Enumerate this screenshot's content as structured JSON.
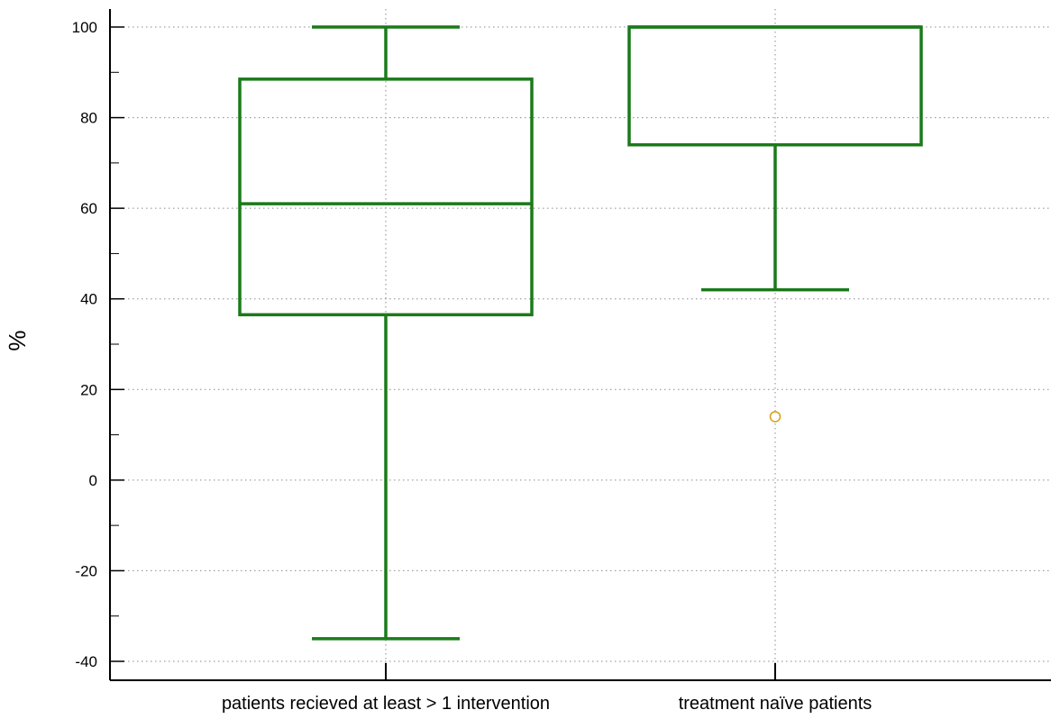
{
  "chart_data": {
    "type": "box",
    "xlabel": "",
    "ylabel": "%",
    "ylim": [
      -42,
      104
    ],
    "y_ticks": [
      -40,
      -20,
      0,
      20,
      40,
      60,
      80,
      100
    ],
    "y_tick_labels": [
      "-40",
      "-20",
      "0",
      "20",
      "40",
      "60",
      "80",
      "100"
    ],
    "grid": true,
    "box_color": "#1a7a1a",
    "outlier_color": "#d4a017",
    "categories": [
      "patients recieved at least > 1 intervention",
      "treatment naïve patients"
    ],
    "boxes": [
      {
        "whisker_low": -35,
        "q1": 36.5,
        "median": 61,
        "q3": 88.5,
        "whisker_high": 100,
        "outliers": []
      },
      {
        "whisker_low": 42,
        "q1": 74,
        "median": 100,
        "q3": 100,
        "whisker_high": 100,
        "outliers": [
          14
        ]
      }
    ]
  }
}
